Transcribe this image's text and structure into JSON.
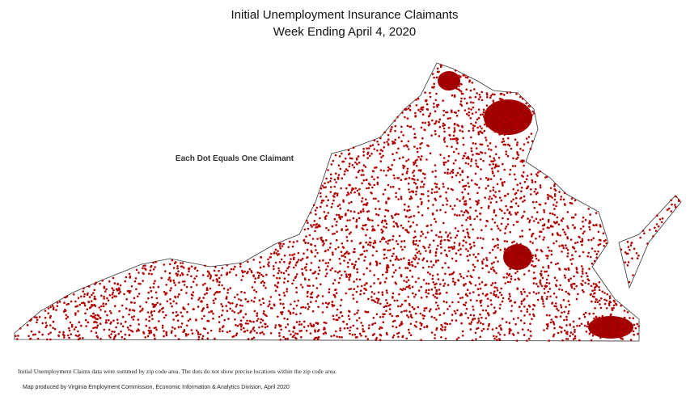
{
  "header": {
    "title": "Initial Unemployment Insurance Claimants",
    "subtitle": "Week Ending April 4, 2020"
  },
  "legend": {
    "note": "Each Dot Equals One Claimant"
  },
  "footer": {
    "source_note": "Initial Unemployment Claims data were summed by zip code area. The dots do not show precise locations within the zip code area.",
    "credit": "Map produced by Virginia Employment Commission, Economic Information & Analytics Division,  April 2020"
  }
}
